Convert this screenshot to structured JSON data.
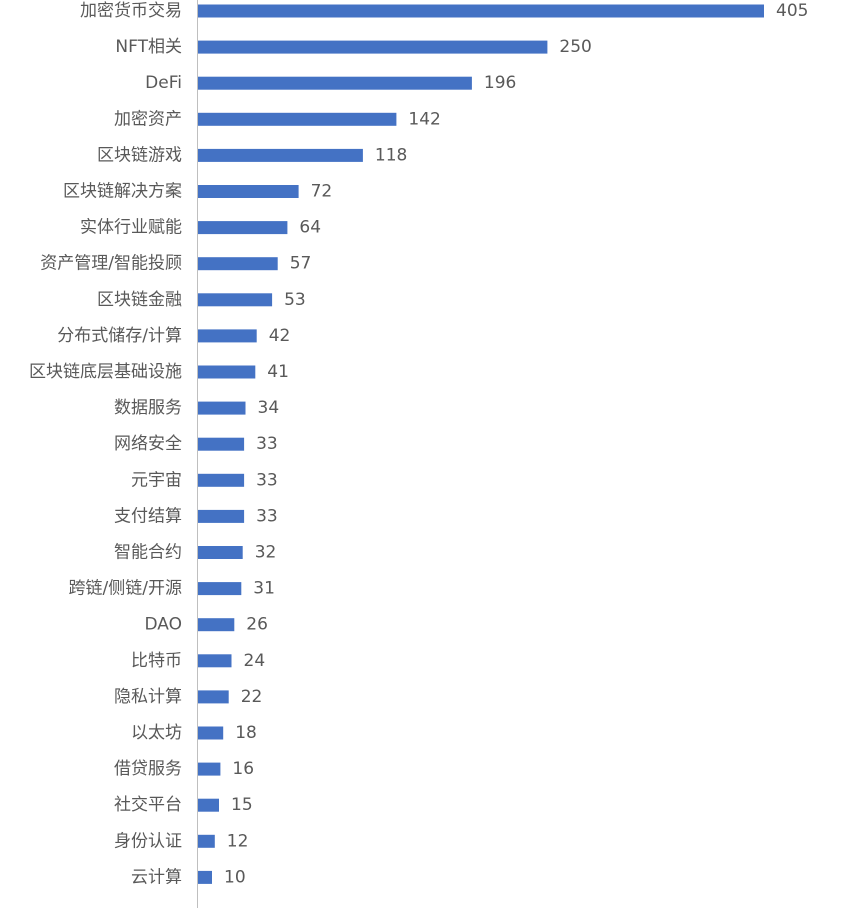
{
  "chart_data": {
    "type": "bar",
    "orientation": "horizontal",
    "title": "",
    "xlabel": "",
    "ylabel": "",
    "grid": false,
    "legend": "none",
    "bar_color": "#4472c4",
    "xlim": [
      0,
      405
    ],
    "categories": [
      "加密货币交易",
      "NFT相关",
      "DeFi",
      "加密资产",
      "区块链游戏",
      "区块链解决方案",
      "实体行业赋能",
      "资产管理/智能投顾",
      "区块链金融",
      "分布式储存/计算",
      "区块链底层基础设施",
      "数据服务",
      "网络安全",
      "元宇宙",
      "支付结算",
      "智能合约",
      "跨链/侧链/开源",
      "DAO",
      "比特币",
      "隐私计算",
      "以太坊",
      "借贷服务",
      "社交平台",
      "身份认证",
      "云计算"
    ],
    "values": [
      405,
      250,
      196,
      142,
      118,
      72,
      64,
      57,
      53,
      42,
      41,
      34,
      33,
      33,
      33,
      32,
      31,
      26,
      24,
      22,
      18,
      16,
      15,
      12,
      10
    ]
  }
}
